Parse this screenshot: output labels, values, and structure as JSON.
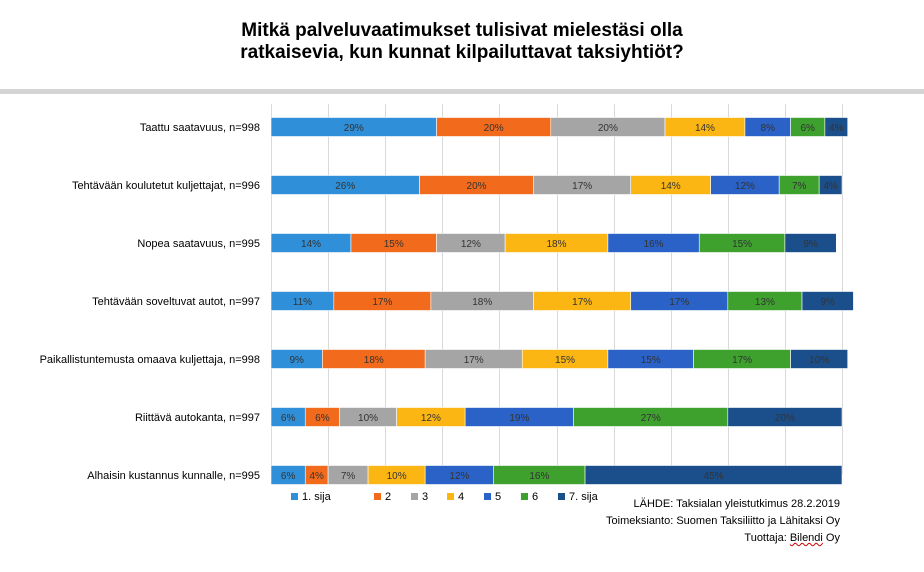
{
  "title_line1": "Mitkä palveluvaatimukset tulisivat mielestäsi olla",
  "title_line2": "ratkaisevia, kun kunnat kilpailuttavat taksiyhtiöt?",
  "source": {
    "line1": "LÄHDE: Taksialan yleistutkimus 28.2.2019",
    "line2": "Toimeksianto: Suomen Taksiliitto ja Lähitaksi Oy",
    "line3_prefix": "Tuottaja: ",
    "line3_name": "Bilendi",
    "line3_suffix": " Oy"
  },
  "chart_data": {
    "type": "bar",
    "orientation": "horizontal",
    "stacked": "100%",
    "xlim": [
      0,
      100
    ],
    "grid": true,
    "legend_position": "bottom-left",
    "categories": [
      "Taattu saatavuus, n=998",
      "Tehtävään koulutetut kuljettajat, n=996",
      "Nopea saatavuus, n=995",
      "Tehtävään soveltuvat autot, n=997",
      "Paikallistuntemusta omaava kuljettaja, n=998",
      "Riittävä autokanta, n=997",
      "Alhaisin kustannus kunnalle, n=995"
    ],
    "series": [
      {
        "name": "1. sija",
        "color": "#2f8fd8",
        "values": [
          29,
          26,
          14,
          11,
          9,
          6,
          6
        ]
      },
      {
        "name": "2",
        "color": "#f26b1d",
        "values": [
          20,
          20,
          15,
          17,
          18,
          6,
          4
        ]
      },
      {
        "name": "3",
        "color": "#a5a5a5",
        "values": [
          20,
          17,
          12,
          18,
          17,
          10,
          7
        ]
      },
      {
        "name": "4",
        "color": "#fbb613",
        "values": [
          14,
          14,
          18,
          17,
          15,
          12,
          10
        ]
      },
      {
        "name": "5",
        "color": "#2a62c8",
        "values": [
          8,
          12,
          16,
          17,
          15,
          19,
          12
        ]
      },
      {
        "name": "6",
        "color": "#3ea12e",
        "values": [
          6,
          7,
          15,
          13,
          17,
          27,
          16
        ]
      },
      {
        "name": "7. sija",
        "color": "#1b4f8c",
        "values": [
          4,
          4,
          9,
          9,
          10,
          20,
          45
        ]
      }
    ]
  }
}
